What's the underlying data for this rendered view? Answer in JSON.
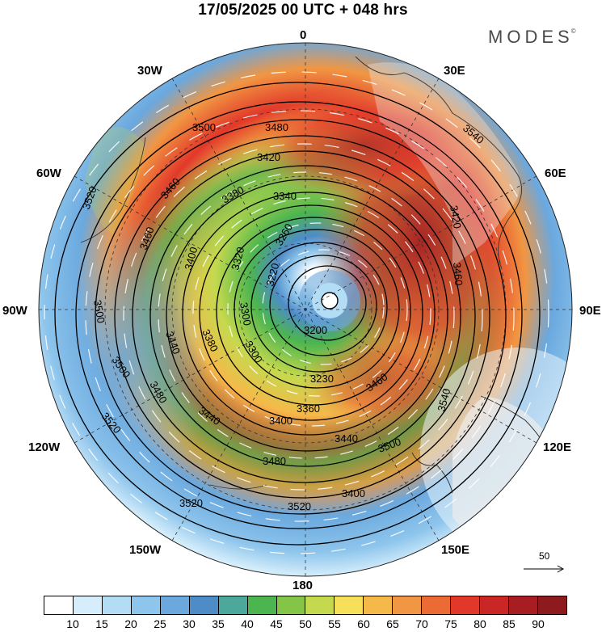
{
  "header": {
    "title": "17/05/2025  00 UTC  + 048 hrs",
    "brand": "MODES",
    "brand_mark": "©"
  },
  "longitude_labels": {
    "lon_0": "0",
    "lon_30e": "30E",
    "lon_60e": "60E",
    "lon_90e": "90E",
    "lon_120e": "120E",
    "lon_150e": "150E",
    "lon_180": "180",
    "lon_150w": "150W",
    "lon_120w": "120W",
    "lon_90w": "90W",
    "lon_60w": "60W",
    "lon_30w": "30W"
  },
  "contour_labels": {
    "c3200": "3200",
    "c3220": "3220",
    "c3230": "3230",
    "c3260": "3260",
    "c3300": "3300",
    "c3300b": "3300",
    "c3320": "3320",
    "c3340": "3340",
    "c3360": "3360",
    "c3380": "3380",
    "c3380b": "3380",
    "c3400": "3400",
    "c3400b": "3400",
    "c3420": "3420",
    "c3440": "3440",
    "c3440b": "3440",
    "c3440c": "3440",
    "c3460": "3460",
    "c3460b": "3460",
    "c3460c": "3460",
    "c3480": "3480",
    "c3480b": "3480",
    "c3480c": "3480",
    "c3500": "3500",
    "c3500b": "3500",
    "c3500c": "3500",
    "c3500d": "3500",
    "c3520": "3520",
    "c3520b": "3520",
    "c3520c": "3520",
    "c3520d": "3520",
    "c3540": "3540",
    "c3540b": "3540",
    "c3400c": "3400",
    "c3420b": "3420",
    "c3460d": "3460"
  },
  "wind_reference": {
    "label": "50"
  },
  "legend": {
    "colors": [
      "#ffffff",
      "#d6eefb",
      "#b3dcf5",
      "#8ec5ec",
      "#6aa8de",
      "#4e8cc8",
      "#4ba89a",
      "#4cb54f",
      "#84c446",
      "#c5d94e",
      "#f6e05a",
      "#f5b94a",
      "#f19642",
      "#ec6a33",
      "#e2382a",
      "#c92625",
      "#a81d22",
      "#8d1b1d"
    ],
    "ticks": [
      "10",
      "15",
      "20",
      "25",
      "30",
      "35",
      "40",
      "45",
      "50",
      "55",
      "60",
      "65",
      "70",
      "75",
      "80",
      "85",
      "90"
    ]
  }
}
